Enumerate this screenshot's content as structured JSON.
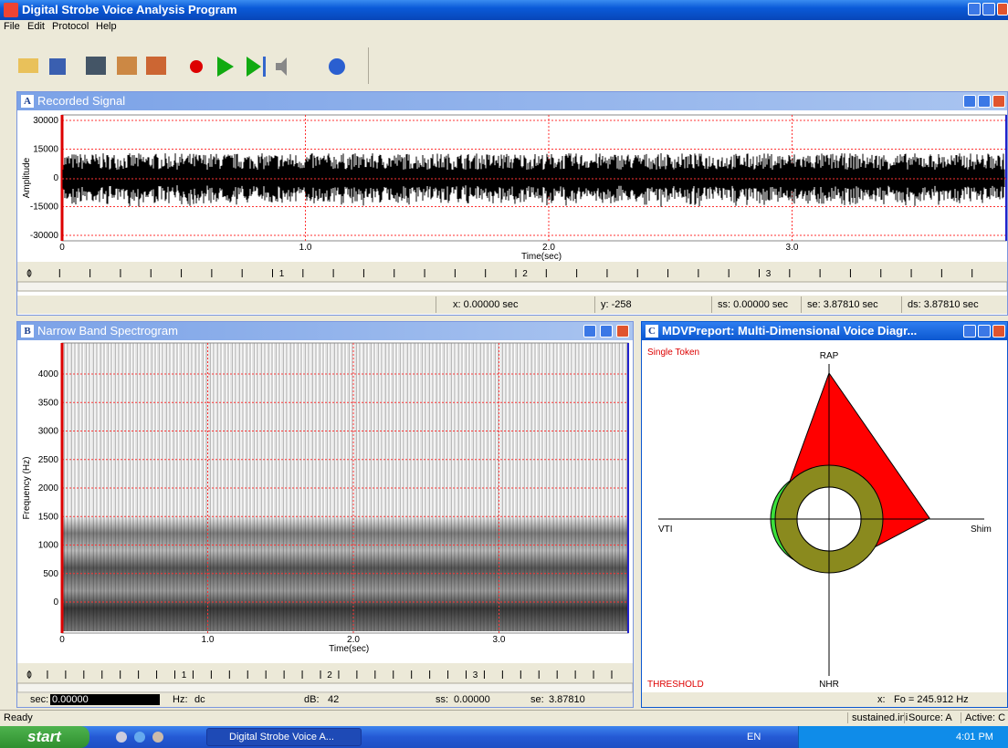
{
  "window": {
    "title": "Digital Strobe Voice Analysis Program"
  },
  "menu": [
    "File",
    "Edit",
    "Protocol",
    "Help"
  ],
  "panel_a": {
    "letter": "A",
    "title": "Recorded Signal",
    "y_label": "Amplitude",
    "yticks": [
      "30000",
      "15000",
      "0",
      "-15000",
      "-30000"
    ],
    "xticks": [
      "0",
      "1.0",
      "2.0",
      "3.0"
    ],
    "x_label": "Time(sec)",
    "ruler": [
      "0",
      "1",
      "2",
      "3"
    ],
    "status": [
      "x:  0.00000 sec",
      "y:  -258",
      "ss: 0.00000 sec",
      "se:  3.87810 sec",
      "ds:  3.87810 sec"
    ]
  },
  "panel_b": {
    "letter": "B",
    "title": "Narrow Band Spectrogram",
    "y_label": "Frequency (Hz)",
    "yticks": [
      "4000",
      "3500",
      "3000",
      "2500",
      "2000",
      "1500",
      "1000",
      "500",
      "0"
    ],
    "xticks": [
      "0",
      "1.0",
      "2.0",
      "3.0"
    ],
    "x_label": "Time(sec)",
    "ruler": [
      "0",
      "1",
      "2",
      "3"
    ],
    "status": [
      "sec:",
      "0.00000",
      "Hz:",
      "dc",
      "dB:",
      "42",
      "ss:",
      "0.00000",
      "se:",
      "3.87810"
    ]
  },
  "panel_c": {
    "letter": "C",
    "title": "MDVPreport: Multi-Dimensional Voice Diagr...",
    "mode": "Single Token",
    "top": "RAP",
    "left": "VTI",
    "right": "Shim",
    "bottom": "NHR",
    "threshold": "THRESHOLD",
    "status": [
      "x:",
      "Fo = 245.912 Hz"
    ]
  },
  "statusbar": [
    "Ready",
    "sustained.ini",
    "Source: A",
    "Active: C"
  ],
  "taskbar": {
    "start": "start",
    "task": "Digital Strobe Voice A...",
    "lang": "EN",
    "clock": "4:01 PM"
  }
}
